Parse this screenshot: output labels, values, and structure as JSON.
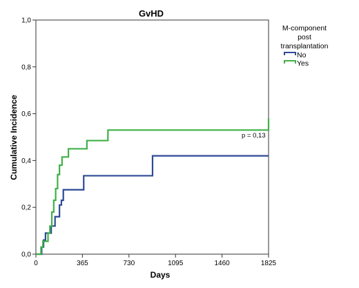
{
  "chart_data": {
    "type": "line",
    "step": true,
    "title": "GvHD",
    "xlabel": "Days",
    "ylabel": "Cumulative Incidence",
    "xlim": [
      0,
      1825
    ],
    "ylim": [
      0,
      1.0
    ],
    "xticks": [
      0,
      365,
      730,
      1095,
      1460,
      1825
    ],
    "xtick_labels": [
      "0",
      "365",
      "730",
      "1095",
      "1460",
      "1825"
    ],
    "yticks": [
      0,
      0.2,
      0.4,
      0.6,
      0.8,
      1.0
    ],
    "ytick_labels": [
      "0,0",
      "0,2",
      "0,4",
      "0,6",
      "0,8",
      "1,0"
    ],
    "grid": false,
    "legend": {
      "title_lines": [
        "M-component",
        "post",
        "transplantation"
      ],
      "placement": "top-right outside plot"
    },
    "annotation": "p = 0,13",
    "series": [
      {
        "name": "No",
        "color": "#2d4a96",
        "x": [
          0,
          45,
          60,
          75,
          95,
          120,
          135,
          150,
          165,
          185,
          200,
          215,
          375,
          915,
          1825
        ],
        "y": [
          0,
          0.03,
          0.06,
          0.09,
          0.09,
          0.12,
          0.12,
          0.16,
          0.16,
          0.21,
          0.23,
          0.275,
          0.335,
          0.42,
          0.42
        ]
      },
      {
        "name": "Yes",
        "color": "#3fb047",
        "x": [
          0,
          40,
          55,
          75,
          95,
          110,
          125,
          140,
          155,
          170,
          185,
          205,
          255,
          400,
          565,
          1825
        ],
        "y": [
          0,
          0.03,
          0.055,
          0.055,
          0.09,
          0.12,
          0.18,
          0.23,
          0.28,
          0.34,
          0.38,
          0.415,
          0.45,
          0.485,
          0.53,
          0.58
        ]
      }
    ]
  }
}
